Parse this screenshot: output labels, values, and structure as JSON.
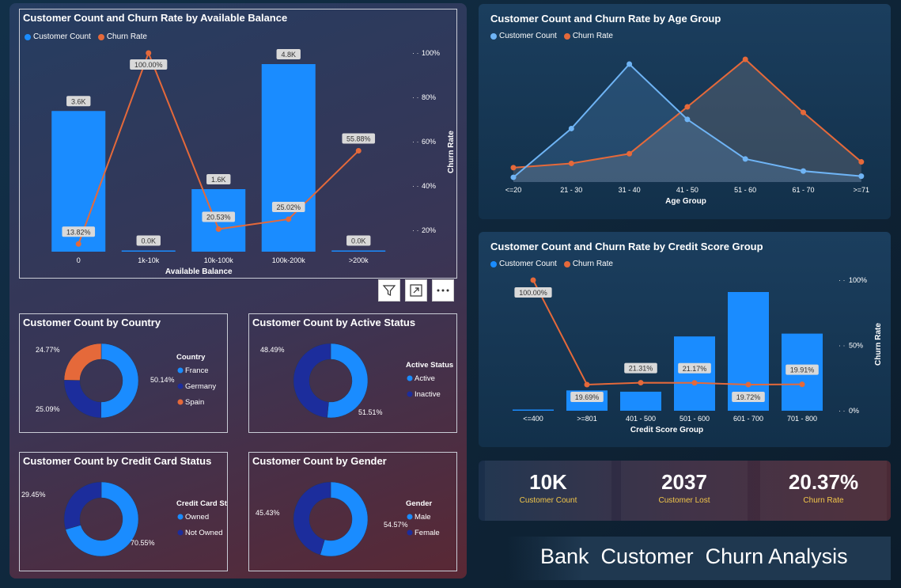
{
  "theme": {
    "bar": "#1a8cff",
    "line": "#e5693a",
    "age_count_line": "#6fb4f5",
    "navy": "#1c2d9c",
    "kpi_label": "#f3c74a"
  },
  "balance_chart": {
    "title": "Customer Count and Churn Rate by Available Balance",
    "legend": [
      "Customer Count",
      "Churn Rate"
    ],
    "xlabel": "Available Balance",
    "y2label": "Churn Rate",
    "y2ticks": [
      "100%",
      "80%",
      "60%",
      "40%",
      "20%"
    ]
  },
  "age_chart": {
    "title": "Customer Count and Churn Rate by Age Group",
    "legend": [
      "Customer Count",
      "Churn Rate"
    ],
    "xlabel": "Age Group"
  },
  "credit_chart": {
    "title": "Customer Count and Churn Rate by Credit Score Group",
    "legend": [
      "Customer Count",
      "Churn Rate"
    ],
    "xlabel": "Credit Score Group",
    "y2label": "Churn Rate",
    "y2ticks": [
      "100%",
      "50%",
      "0%"
    ]
  },
  "donuts": {
    "country": {
      "title": "Customer Count by Country",
      "legend_title": "Country",
      "items": [
        {
          "label": "France",
          "pct": "50.14%",
          "value": 50.14
        },
        {
          "label": "Germany",
          "pct": "25.09%",
          "value": 25.09
        },
        {
          "label": "Spain",
          "pct": "24.77%",
          "value": 24.77
        }
      ]
    },
    "active": {
      "title": "Customer Count by Active Status",
      "legend_title": "Active Status",
      "items": [
        {
          "label": "Active",
          "pct": "51.51%",
          "value": 51.51
        },
        {
          "label": "Inactive",
          "pct": "48.49%",
          "value": 48.49
        }
      ]
    },
    "card": {
      "title": "Customer Count by Credit Card Status",
      "legend_title": "Credit Card Sta...",
      "items": [
        {
          "label": "Owned",
          "pct": "70.55%",
          "value": 70.55
        },
        {
          "label": "Not Owned",
          "pct": "29.45%",
          "value": 29.45
        }
      ]
    },
    "gender": {
      "title": "Customer Count by Gender",
      "legend_title": "Gender",
      "items": [
        {
          "label": "Male",
          "pct": "54.57%",
          "value": 54.57
        },
        {
          "label": "Female",
          "pct": "45.43%",
          "value": 45.43
        }
      ]
    }
  },
  "kpis": [
    {
      "value": "10K",
      "label": "Customer Count"
    },
    {
      "value": "2037",
      "label": "Customer Lost"
    },
    {
      "value": "20.37%",
      "label": "Churn Rate"
    }
  ],
  "banner": "Bank  Customer  Churn Analysis",
  "chart_data": [
    {
      "type": "bar",
      "title": "Customer Count and Churn Rate by Available Balance",
      "categories": [
        "0",
        "1k-10k",
        "10k-100k",
        "100k-200k",
        ">200k"
      ],
      "series": [
        {
          "name": "Customer Count",
          "values": [
            3600,
            0,
            1600,
            4800,
            0
          ],
          "labels": [
            "3.6K",
            "0.0K",
            "1.6K",
            "4.8K",
            "0.0K"
          ]
        },
        {
          "name": "Churn Rate",
          "type": "line",
          "values": [
            13.82,
            100.0,
            20.53,
            25.02,
            55.88
          ],
          "labels": [
            "13.82%",
            "100.00%",
            "20.53%",
            "25.02%",
            "55.88%"
          ]
        }
      ],
      "xlabel": "Available Balance",
      "y2label": "Churn Rate"
    },
    {
      "type": "area",
      "title": "Customer Count and Churn Rate by Age Group",
      "categories": [
        "<=20",
        "21 - 30",
        "31 - 40",
        "41 - 50",
        "51 - 60",
        "61 - 70",
        ">=71"
      ],
      "series": [
        {
          "name": "Customer Count",
          "values": [
            89,
            1968,
            4451,
            2320,
            797,
            331,
            133
          ]
        },
        {
          "name": "Churn Rate",
          "values": [
            5.6,
            7.6,
            12.1,
            34.0,
            56.2,
            31.4,
            8.3
          ]
        }
      ],
      "xlabel": "Age Group"
    },
    {
      "type": "bar",
      "title": "Customer Count and Churn Rate by Credit Score Group",
      "categories": [
        "<=400",
        ">=801",
        "401 - 500",
        "501 - 600",
        "601 - 700",
        "701 - 800"
      ],
      "series": [
        {
          "name": "Customer Count",
          "values": [
            19,
            655,
            614,
            2396,
            3829,
            2487
          ]
        },
        {
          "name": "Churn Rate",
          "type": "line",
          "values": [
            100.0,
            19.69,
            21.31,
            21.17,
            19.72,
            19.91
          ],
          "labels": [
            "100.00%",
            "19.69%",
            "21.31%",
            "21.17%",
            "19.72%",
            "19.91%"
          ]
        }
      ],
      "xlabel": "Credit Score Group",
      "y2label": "Churn Rate"
    }
  ]
}
